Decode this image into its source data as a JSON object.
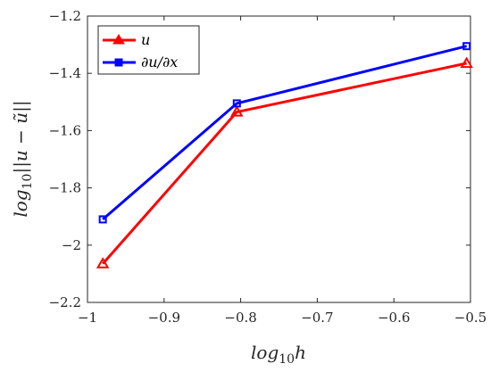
{
  "chart_data": {
    "type": "line",
    "xlabel": "log10h",
    "ylabel": "log10||u − ũ||",
    "xlim": [
      -1,
      -0.5
    ],
    "ylim": [
      -2.2,
      -1.2
    ],
    "xticks": [
      "−1",
      "−0.9",
      "−0.8",
      "−0.7",
      "−0.6",
      "−0.5"
    ],
    "yticks": [
      "−1.2",
      "−1.4",
      "−1.6",
      "−1.8",
      "−2",
      "−2.2"
    ],
    "legend_position": "top-left",
    "grid": false,
    "series": [
      {
        "name": "u",
        "color": "#ff0000",
        "marker": "triangle",
        "x": [
          -0.98,
          -0.805,
          -0.505
        ],
        "y": [
          -2.065,
          -1.535,
          -1.365
        ]
      },
      {
        "name": "∂u/∂x",
        "color": "#0000ff",
        "marker": "square",
        "x": [
          -0.98,
          -0.805,
          -0.505
        ],
        "y": [
          -1.91,
          -1.505,
          -1.305
        ]
      }
    ]
  }
}
